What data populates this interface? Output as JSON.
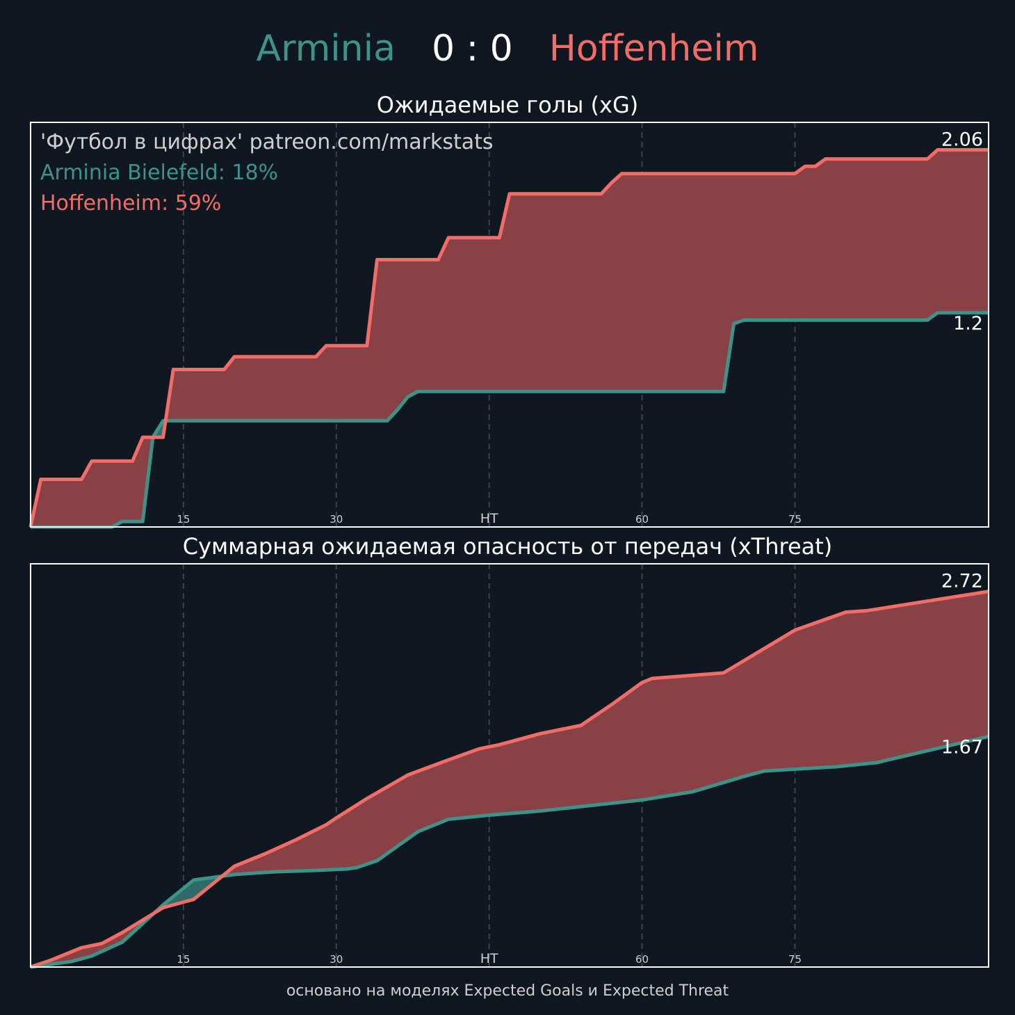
{
  "header": {
    "home_team": "Arminia",
    "score": "0 : 0",
    "away_team": "Hoffenheim"
  },
  "colors": {
    "background": "#0f1820",
    "home": "#3d9389",
    "away": "#f26c68",
    "fill_away_ahead": "#8a4146",
    "fill_home_ahead": "#2f6b66",
    "frame": "#ffffff",
    "grid": "#3a444c"
  },
  "footer": "основано на моделях Expected Goals и Expected Threat",
  "chart_data": [
    {
      "type": "line",
      "title": "Ожидаемые голы (xG)",
      "watermark": "'Футбол в цифрах' patreon.com/markstats",
      "legend": [
        {
          "text": "Arminia Bielefeld: 18%",
          "series": "home"
        },
        {
          "text": "Hoffenheim: 59%",
          "series": "away"
        }
      ],
      "xlim": [
        0,
        94
      ],
      "ylim": [
        0,
        2.21
      ],
      "x_ticks": [
        {
          "value": 15,
          "label": "15"
        },
        {
          "value": 30,
          "label": "30"
        },
        {
          "value": 45,
          "label": "HT"
        },
        {
          "value": 60,
          "label": "60"
        },
        {
          "value": 75,
          "label": "75"
        }
      ],
      "grid": "vertical dashed",
      "end_labels": {
        "home": "1.2",
        "away": "2.06"
      },
      "series": [
        {
          "name": "Arminia Bielefeld",
          "key": "home",
          "x": [
            0,
            8,
            9,
            11,
            12,
            13,
            35,
            36,
            37,
            38,
            39,
            68,
            69,
            70,
            88,
            89,
            94
          ],
          "y": [
            0,
            0,
            0.03,
            0.03,
            0.49,
            0.58,
            0.58,
            0.64,
            0.71,
            0.74,
            0.74,
            0.74,
            1.11,
            1.13,
            1.13,
            1.17,
            1.17
          ]
        },
        {
          "name": "Hoffenheim",
          "key": "away",
          "x": [
            0,
            1,
            2,
            5,
            6,
            10,
            11,
            13,
            14,
            19,
            20,
            28,
            29,
            33,
            34,
            40,
            41,
            46,
            47,
            56,
            57,
            58,
            75,
            76,
            77,
            78,
            79,
            88,
            89,
            94
          ],
          "y": [
            0,
            0.26,
            0.26,
            0.26,
            0.36,
            0.36,
            0.49,
            0.49,
            0.86,
            0.86,
            0.93,
            0.93,
            0.99,
            0.99,
            1.46,
            1.46,
            1.58,
            1.58,
            1.82,
            1.82,
            1.88,
            1.93,
            1.93,
            1.97,
            1.97,
            2.01,
            2.01,
            2.01,
            2.06,
            2.06
          ]
        }
      ]
    },
    {
      "type": "line",
      "title": "Суммарная ожидаемая опасность от передач (xThreat)",
      "xlim": [
        0,
        94
      ],
      "ylim": [
        0,
        2.92
      ],
      "x_ticks": [
        {
          "value": 15,
          "label": "15"
        },
        {
          "value": 30,
          "label": "30"
        },
        {
          "value": 45,
          "label": "HT"
        },
        {
          "value": 60,
          "label": "60"
        },
        {
          "value": 75,
          "label": "75"
        }
      ],
      "grid": "vertical dashed",
      "end_labels": {
        "home": "1.67",
        "away": "2.72"
      },
      "series": [
        {
          "name": "Arminia Bielefeld",
          "key": "home",
          "x": [
            0,
            2,
            4,
            6,
            9,
            13,
            16,
            20,
            24,
            28,
            31,
            32,
            34,
            38,
            41,
            45,
            50,
            55,
            60,
            65,
            70,
            72,
            79,
            83,
            94
          ],
          "y": [
            0,
            0.02,
            0.04,
            0.08,
            0.18,
            0.45,
            0.63,
            0.67,
            0.69,
            0.7,
            0.71,
            0.72,
            0.77,
            0.98,
            1.07,
            1.1,
            1.13,
            1.17,
            1.21,
            1.27,
            1.38,
            1.42,
            1.45,
            1.48,
            1.67
          ]
        },
        {
          "name": "Hoffenheim",
          "key": "away",
          "x": [
            0,
            2,
            5,
            7,
            9,
            13,
            16,
            20,
            23,
            26,
            29,
            30,
            33,
            37,
            41,
            44,
            46,
            50,
            54,
            57,
            60,
            61,
            68,
            75,
            80,
            82,
            94
          ],
          "y": [
            0,
            0.05,
            0.14,
            0.17,
            0.25,
            0.43,
            0.49,
            0.73,
            0.82,
            0.92,
            1.03,
            1.08,
            1.22,
            1.39,
            1.5,
            1.58,
            1.61,
            1.69,
            1.75,
            1.9,
            2.06,
            2.09,
            2.13,
            2.44,
            2.57,
            2.58,
            2.72
          ]
        }
      ]
    }
  ],
  "panels_text": {
    "xg_title": "Ожидаемые голы (xG)",
    "xt_title": "Суммарная ожидаемая опасность от передач (xThreat)"
  }
}
